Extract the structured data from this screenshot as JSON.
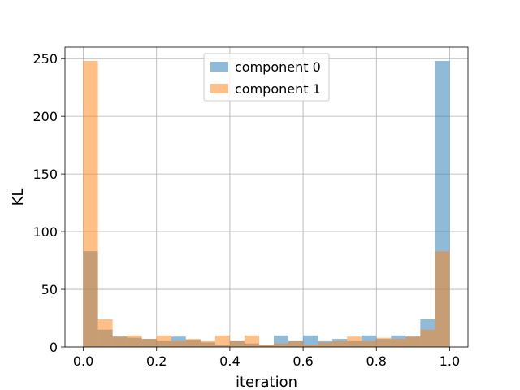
{
  "chart_data": {
    "type": "bar",
    "title": "",
    "xlabel": "iteration",
    "ylabel": "KL",
    "xlim": [
      -0.05,
      1.05
    ],
    "ylim": [
      0,
      260
    ],
    "grid": true,
    "legend_position": "top-center",
    "bin_width": 0.04,
    "bin_starts": [
      0.0,
      0.04,
      0.08,
      0.12,
      0.16,
      0.2,
      0.24,
      0.28,
      0.32,
      0.36,
      0.4,
      0.44,
      0.48,
      0.52,
      0.56,
      0.6,
      0.64,
      0.68,
      0.72,
      0.76,
      0.8,
      0.84,
      0.88,
      0.92,
      0.96
    ],
    "x_ticks": [
      0.0,
      0.2,
      0.4,
      0.6,
      0.8,
      1.0
    ],
    "x_tick_labels": [
      "0.0",
      "0.2",
      "0.4",
      "0.6",
      "0.8",
      "1.0"
    ],
    "y_ticks": [
      0,
      50,
      100,
      150,
      200,
      250
    ],
    "y_tick_labels": [
      "0",
      "50",
      "100",
      "150",
      "200",
      "250"
    ],
    "series": [
      {
        "name": "component 0",
        "color": "#1f77b4",
        "opacity": 0.5,
        "values": [
          83,
          15,
          9,
          8,
          7,
          5,
          9,
          6,
          4,
          2,
          5,
          3,
          2,
          10,
          5,
          10,
          5,
          7,
          5,
          10,
          7,
          10,
          9,
          24,
          248
        ]
      },
      {
        "name": "component 1",
        "color": "#ff7f0e",
        "opacity": 0.5,
        "values": [
          248,
          24,
          9,
          10,
          7,
          10,
          5,
          7,
          5,
          10,
          5,
          10,
          2,
          3,
          5,
          2,
          4,
          5,
          9,
          5,
          8,
          7,
          9,
          15,
          83
        ]
      }
    ]
  }
}
